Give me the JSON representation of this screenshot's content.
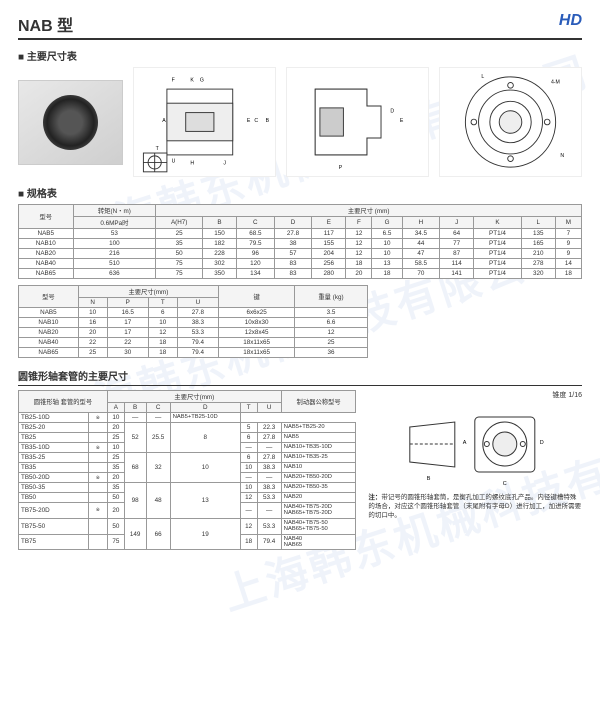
{
  "watermark": "上海韩东机械科技有限公司",
  "title": "NAB 型",
  "logo": "HD",
  "dims_title": "主要尺寸表",
  "spec_title": "规格表",
  "spec_cols1": [
    "型号",
    "转矩(N・m) 0.6MPa时",
    "A(H7)",
    "B",
    "C",
    "D",
    "E",
    "F",
    "G",
    "H",
    "J",
    "K",
    "L",
    "M"
  ],
  "spec_group": "主要尺寸 (mm)",
  "spec_rows1": [
    {
      "m": "NAB5",
      "t": "53",
      "v": [
        "25",
        "150",
        "68.5",
        "27.8",
        "117",
        "12",
        "6.5",
        "34.5",
        "64",
        "PT1/4",
        "135",
        "7"
      ]
    },
    {
      "m": "NAB10",
      "t": "100",
      "v": [
        "35",
        "182",
        "79.5",
        "38",
        "155",
        "12",
        "10",
        "44",
        "77",
        "PT1/4",
        "165",
        "9"
      ]
    },
    {
      "m": "NAB20",
      "t": "216",
      "v": [
        "50",
        "228",
        "96",
        "57",
        "204",
        "12",
        "10",
        "47",
        "87",
        "PT1/4",
        "210",
        "9"
      ]
    },
    {
      "m": "NAB40",
      "t": "510",
      "v": [
        "75",
        "302",
        "120",
        "83",
        "256",
        "18",
        "13",
        "58.5",
        "114",
        "PT1/4",
        "278",
        "14"
      ]
    },
    {
      "m": "NAB65",
      "t": "636",
      "v": [
        "75",
        "350",
        "134",
        "83",
        "280",
        "20",
        "18",
        "70",
        "141",
        "PT1/4",
        "320",
        "18"
      ]
    }
  ],
  "spec_cols2": [
    "型号",
    "N",
    "P",
    "T",
    "U",
    "键",
    "重量 (kg)"
  ],
  "spec_group2": "主要尺寸(mm)",
  "spec_rows2": [
    {
      "m": "NAB5",
      "v": [
        "10",
        "16.5",
        "6",
        "27.8",
        "6x6x25",
        "3.5"
      ]
    },
    {
      "m": "NAB10",
      "v": [
        "16",
        "17",
        "10",
        "38.3",
        "10x8x30",
        "6.6"
      ]
    },
    {
      "m": "NAB20",
      "v": [
        "20",
        "17",
        "12",
        "53.3",
        "12x8x45",
        "12"
      ]
    },
    {
      "m": "NAB40",
      "v": [
        "22",
        "22",
        "18",
        "79.4",
        "18x11x65",
        "25"
      ]
    },
    {
      "m": "NAB65",
      "v": [
        "25",
        "30",
        "18",
        "79.4",
        "18x11x65",
        "36"
      ]
    }
  ],
  "sub_title": "圆锥形轴套管的主要尺寸",
  "tb_cols": [
    "圆锥形轴 套管的型号",
    "A",
    "B",
    "C",
    "D",
    "T",
    "U",
    "制动器公称型号"
  ],
  "tb_group": "主要尺寸(mm)",
  "tb_rows": [
    {
      "m": "TB25-10D",
      "s": "※",
      "a": "10",
      "b": "",
      "c": "",
      "d": "",
      "t": "—",
      "u": "—",
      "p": "NAB5+TB25-10D",
      "bspan": false
    },
    {
      "m": "TB25-20",
      "s": "",
      "a": "20",
      "b": "52",
      "c": "25.5",
      "d": "8",
      "t": "5",
      "u": "22.3",
      "p": "NAB5+TB25-20",
      "bspan": true,
      "rspan": 3
    },
    {
      "m": "TB25",
      "s": "",
      "a": "25",
      "b": "",
      "c": "",
      "d": "",
      "t": "6",
      "u": "27.8",
      "p": "NAB5",
      "bspan": false
    },
    {
      "m": "TB35-10D",
      "s": "※",
      "a": "10",
      "b": "",
      "c": "",
      "d": "",
      "t": "—",
      "u": "—",
      "p": "NAB10+TB35-10D",
      "bspan": false
    },
    {
      "m": "TB35-25",
      "s": "",
      "a": "25",
      "b": "68",
      "c": "32",
      "d": "10",
      "t": "6",
      "u": "27.8",
      "p": "NAB10+TB35-25",
      "bspan": true,
      "rspan": 3
    },
    {
      "m": "TB35",
      "s": "",
      "a": "35",
      "b": "",
      "c": "",
      "d": "",
      "t": "10",
      "u": "38.3",
      "p": "NAB10",
      "bspan": false
    },
    {
      "m": "TB50-20D",
      "s": "※",
      "a": "20",
      "b": "",
      "c": "",
      "d": "",
      "t": "—",
      "u": "—",
      "p": "NAB20+TB50-20D",
      "bspan": false
    },
    {
      "m": "TB50-35",
      "s": "",
      "a": "35",
      "b": "98",
      "c": "48",
      "d": "13",
      "t": "10",
      "u": "38.3",
      "p": "NAB20+TB50-35",
      "bspan": true,
      "rspan": 3
    },
    {
      "m": "TB50",
      "s": "",
      "a": "50",
      "b": "",
      "c": "",
      "d": "",
      "t": "12",
      "u": "53.3",
      "p": "NAB20",
      "bspan": false
    },
    {
      "m": "TB75-20D",
      "s": "※",
      "a": "20",
      "b": "",
      "c": "",
      "d": "",
      "t": "—",
      "u": "—",
      "p": "NAB40+TB75-20D NAB65+TB75-20D",
      "bspan": false
    },
    {
      "m": "TB75-50",
      "s": "",
      "a": "50",
      "b": "149",
      "c": "66",
      "d": "19",
      "t": "12",
      "u": "53.3",
      "p": "NAB40+TB75-50 NAB65+TB75-50",
      "bspan": true,
      "rspan": 3
    },
    {
      "m": "TB75",
      "s": "",
      "a": "75",
      "b": "",
      "c": "",
      "d": "",
      "t": "18",
      "u": "79.4",
      "p": "NAB40 NAB65",
      "bspan": false
    }
  ],
  "taper_label": "锥度 1/16",
  "note_label": "注：",
  "note_text": "带记号的圆锥形轴套筒，是衡孔加工的螺纹底孔产品。内径键槽特殊的场合，对应这个圆锥形轴套管（末尾附有字母D）进行加工，加进所需要的切口中。"
}
